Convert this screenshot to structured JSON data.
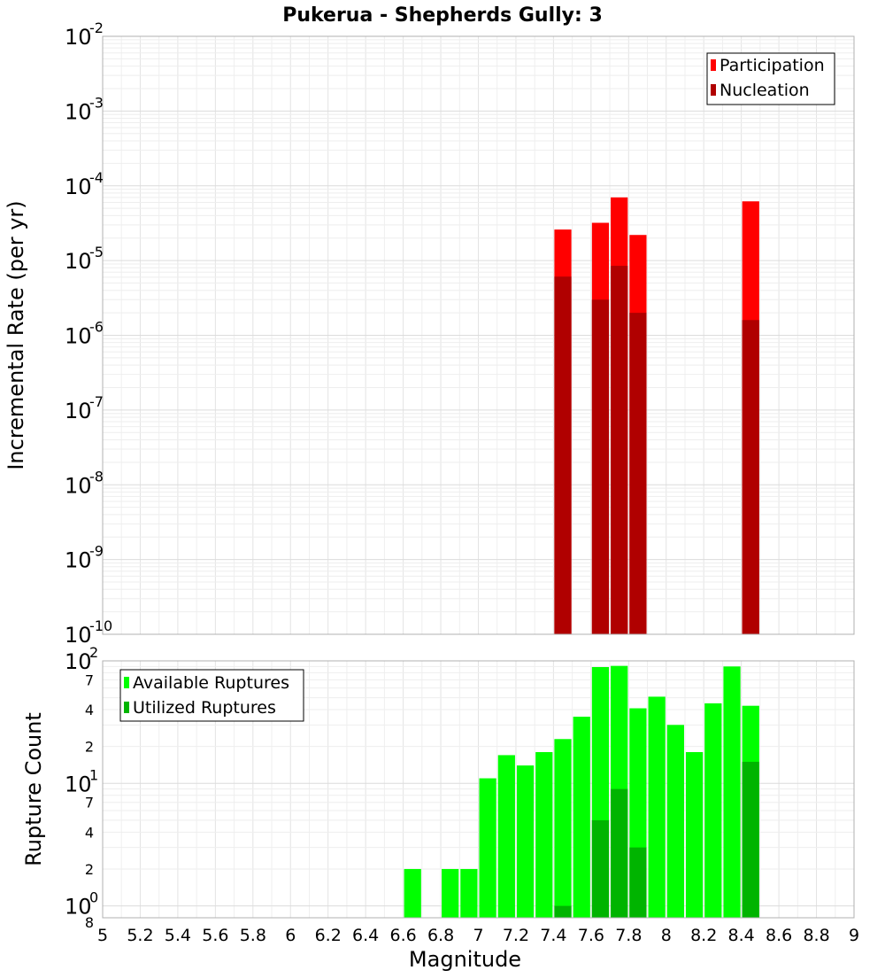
{
  "chart_data": [
    {
      "id": "top",
      "type": "bar",
      "title": "Pukerua - Shepherds Gully: 3",
      "xlabel": "Magnitude",
      "ylabel": "Incremental Rate (per yr)",
      "yscale": "log",
      "xlim": [
        5,
        9
      ],
      "ylim": [
        1e-10,
        0.01
      ],
      "grid": true,
      "legend_position": "top-right",
      "bar_width": 0.1,
      "y_major_ticks": [
        {
          "value": 1e-10,
          "base": "10",
          "exp": "-10"
        },
        {
          "value": 1e-09,
          "base": "10",
          "exp": "-9"
        },
        {
          "value": 1e-08,
          "base": "10",
          "exp": "-8"
        },
        {
          "value": 1e-07,
          "base": "10",
          "exp": "-7"
        },
        {
          "value": 1e-06,
          "base": "10",
          "exp": "-6"
        },
        {
          "value": 1e-05,
          "base": "10",
          "exp": "-5"
        },
        {
          "value": 0.0001,
          "base": "10",
          "exp": "-4"
        },
        {
          "value": 0.001,
          "base": "10",
          "exp": "-3"
        },
        {
          "value": 0.01,
          "base": "10",
          "exp": "-2"
        }
      ],
      "series": [
        {
          "name": "Participation",
          "color": "#ff0000",
          "x": [
            7.45,
            7.65,
            7.75,
            7.85,
            8.45
          ],
          "values": [
            2.6e-05,
            3.2e-05,
            7e-05,
            2.2e-05,
            6.2e-05
          ]
        },
        {
          "name": "Nucleation",
          "color": "#b00000",
          "x": [
            7.45,
            7.65,
            7.75,
            7.85,
            8.45
          ],
          "values": [
            6.1e-06,
            3e-06,
            8.5e-06,
            2e-06,
            1.6e-06
          ]
        }
      ]
    },
    {
      "id": "bottom",
      "type": "bar",
      "xlabel": "Magnitude",
      "ylabel": "Rupture Count",
      "yscale": "log",
      "xlim": [
        5,
        9
      ],
      "ylim": [
        0.8,
        100
      ],
      "grid": true,
      "legend_position": "top-left",
      "bar_width": 0.1,
      "x_ticks": [
        "5",
        "5.2",
        "5.4",
        "5.6",
        "5.8",
        "6",
        "6.2",
        "6.4",
        "6.6",
        "6.8",
        "7",
        "7.2",
        "7.4",
        "7.6",
        "7.8",
        "8",
        "8.2",
        "8.4",
        "8.6",
        "8.8",
        "9"
      ],
      "y_major_ticks": [
        {
          "value": 1,
          "base": "10",
          "exp": "0"
        },
        {
          "value": 10,
          "base": "10",
          "exp": "1"
        },
        {
          "value": 100,
          "base": "10",
          "exp": "2"
        }
      ],
      "y_minor_tick_labels": [
        {
          "value": 0.8,
          "label": "8"
        },
        {
          "value": 2,
          "label": "2"
        },
        {
          "value": 4,
          "label": "4"
        },
        {
          "value": 7,
          "label": "7"
        },
        {
          "value": 20,
          "label": "2"
        },
        {
          "value": 40,
          "label": "4"
        },
        {
          "value": 70,
          "label": "7"
        }
      ],
      "series": [
        {
          "name": "Available Ruptures",
          "color": "#00ff00",
          "x": [
            6.65,
            6.85,
            6.95,
            7.05,
            7.15,
            7.25,
            7.35,
            7.45,
            7.55,
            7.65,
            7.75,
            7.85,
            7.95,
            8.05,
            8.15,
            8.25,
            8.35,
            8.45
          ],
          "values": [
            2,
            2,
            2,
            11,
            17,
            14,
            18,
            23,
            35,
            89,
            91,
            41,
            51,
            30,
            18,
            45,
            90,
            43
          ]
        },
        {
          "name": "Utilized Ruptures",
          "color": "#00b400",
          "x": [
            7.45,
            7.65,
            7.75,
            7.85,
            8.45
          ],
          "values": [
            1,
            5,
            9,
            3,
            15
          ]
        }
      ]
    }
  ]
}
